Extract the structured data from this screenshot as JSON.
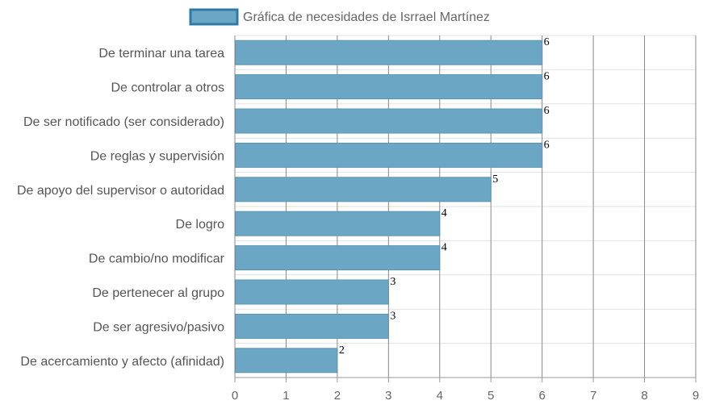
{
  "chart_data": {
    "type": "bar",
    "orientation": "horizontal",
    "categories": [
      "De terminar una tarea",
      "De controlar a otros",
      "De ser notificado (ser considerado)",
      "De reglas y supervisión",
      "De apoyo del supervisor o autoridad",
      "De logro",
      "De cambio/no modificar",
      "De pertenecer al grupo",
      "De ser agresivo/pasivo",
      "De acercamiento y afecto (afinidad)"
    ],
    "series": [
      {
        "name": "Gráfica de necesidades de Isrrael Martínez",
        "values": [
          6,
          6,
          6,
          6,
          5,
          4,
          4,
          3,
          3,
          2
        ]
      }
    ],
    "xlim": [
      0,
      9
    ],
    "x_ticks": [
      0,
      1,
      2,
      3,
      4,
      5,
      6,
      7,
      8,
      9
    ],
    "grid": true,
    "legend_position": "top-center",
    "colors": {
      "bar_fill": "#6ba7c4",
      "bar_stroke": "#5a93b0",
      "legend_border": "#2e7aa6",
      "grid": "#888888",
      "row_divider": "#e2e2e2"
    }
  }
}
